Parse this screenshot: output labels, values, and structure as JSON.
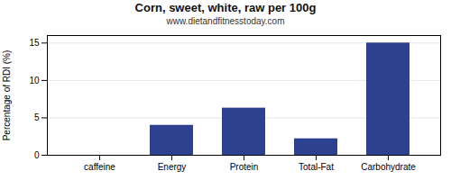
{
  "chart_data": {
    "type": "bar",
    "title": "Corn, sweet, white, raw per 100g",
    "subtitle": "www.dietandfitnesstoday.com",
    "categories": [
      "caffeine",
      "Energy",
      "Protein",
      "Total-Fat",
      "Carbohydrate"
    ],
    "values": [
      0,
      4.0,
      6.3,
      2.2,
      15.0
    ],
    "color": "#2e4090",
    "ylabel": "Percentage of RDI (%)",
    "ylim": [
      0,
      16
    ],
    "yticks": [
      0,
      5,
      10,
      15
    ],
    "grid": true
  }
}
